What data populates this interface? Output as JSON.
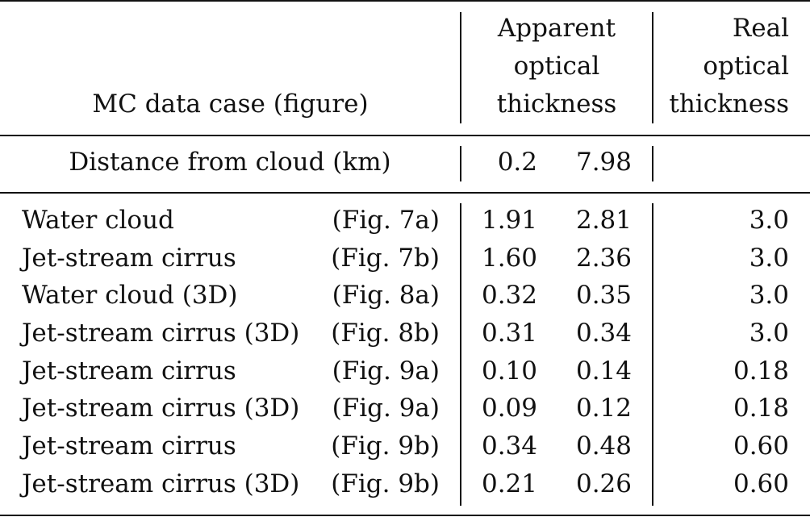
{
  "table": {
    "headers": {
      "case": "MC data case (figure)",
      "apparent": [
        "Apparent",
        "optical",
        "thickness"
      ],
      "real": [
        "Real",
        "optical",
        "thickness"
      ]
    },
    "distance_row": {
      "label": "Distance from cloud (km)",
      "values": [
        "0.2",
        "7.98"
      ]
    },
    "rows": [
      {
        "case": "Water cloud",
        "figure": "(Fig. 7a)",
        "near": "1.91",
        "far": "2.81",
        "real": "3.0"
      },
      {
        "case": "Jet-stream cirrus",
        "figure": "(Fig. 7b)",
        "near": "1.60",
        "far": "2.36",
        "real": "3.0"
      },
      {
        "case": "Water cloud (3D)",
        "figure": "(Fig. 8a)",
        "near": "0.32",
        "far": "0.35",
        "real": "3.0"
      },
      {
        "case": "Jet-stream cirrus (3D)",
        "figure": "(Fig. 8b)",
        "near": "0.31",
        "far": "0.34",
        "real": "3.0"
      },
      {
        "case": "Jet-stream cirrus",
        "figure": "(Fig. 9a)",
        "near": "0.10",
        "far": "0.14",
        "real": "0.18"
      },
      {
        "case": "Jet-stream cirrus (3D)",
        "figure": "(Fig. 9a)",
        "near": "0.09",
        "far": "0.12",
        "real": "0.18"
      },
      {
        "case": "Jet-stream cirrus",
        "figure": "(Fig. 9b)",
        "near": "0.34",
        "far": "0.48",
        "real": "0.60"
      },
      {
        "case": "Jet-stream cirrus (3D)",
        "figure": "(Fig. 9b)",
        "near": "0.21",
        "far": "0.26",
        "real": "0.60"
      }
    ]
  }
}
